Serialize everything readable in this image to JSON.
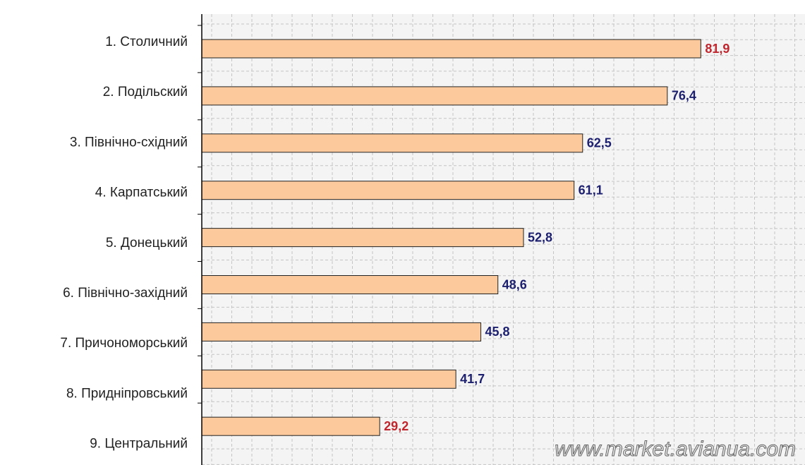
{
  "chart_data": {
    "type": "barh",
    "categories": [
      "1. Столичний",
      "2. Подільский",
      "3. Північно-східний",
      "4. Карпатський",
      "5. Донецький",
      "6. Північно-західний",
      "7. Причономорський",
      "8. Придніпровський",
      "9. Центральний"
    ],
    "values": [
      81.9,
      76.4,
      62.5,
      61.1,
      52.8,
      48.6,
      45.8,
      41.7,
      29.2
    ],
    "value_labels": [
      "81,9",
      "76,4",
      "62,5",
      "61,1",
      "52,8",
      "48,6",
      "45,8",
      "41,7",
      "29,2"
    ],
    "value_label_colors": [
      "#c0262d",
      "#1c1f6e",
      "#1c1f6e",
      "#1c1f6e",
      "#1c1f6e",
      "#1c1f6e",
      "#1c1f6e",
      "#1c1f6e",
      "#c0262d"
    ],
    "color": "#fbc99b",
    "xlim": [
      0,
      99
    ],
    "grid": true,
    "watermark": "www.market.avianua.com"
  }
}
